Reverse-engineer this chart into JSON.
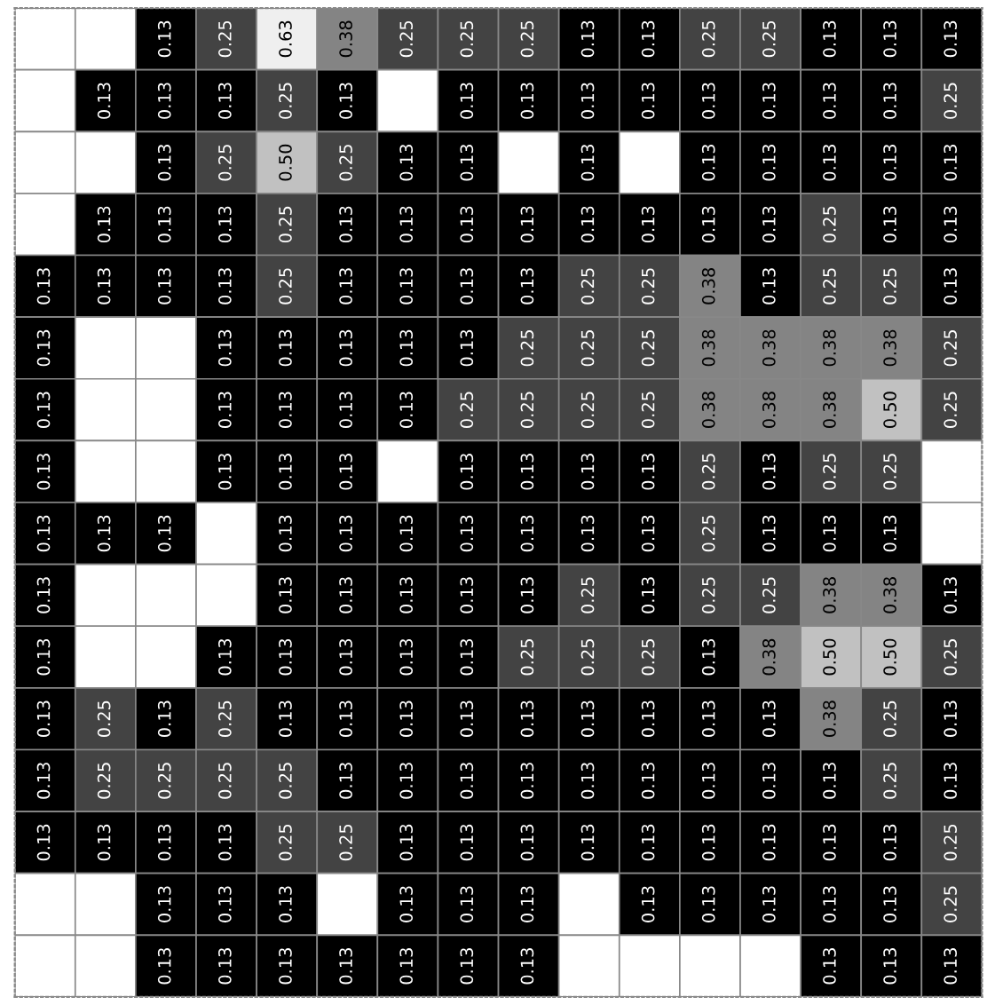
{
  "chart_data": {
    "type": "heatmap",
    "cell_labels": [
      [
        null,
        null,
        "0.13",
        "0.25",
        "0.63",
        "0.38",
        "0.25",
        "0.25",
        "0.25",
        "0.13",
        "0.13",
        "0.25",
        "0.25",
        "0.13",
        "0.13",
        "0.13"
      ],
      [
        null,
        "0.13",
        "0.13",
        "0.13",
        "0.25",
        "0.13",
        null,
        "0.13",
        "0.13",
        "0.13",
        "0.13",
        "0.13",
        "0.13",
        "0.13",
        "0.13",
        "0.25"
      ],
      [
        null,
        null,
        "0.13",
        "0.25",
        "0.50",
        "0.25",
        "0.13",
        "0.13",
        null,
        "0.13",
        null,
        "0.13",
        "0.13",
        "0.13",
        "0.13",
        "0.13"
      ],
      [
        null,
        "0.13",
        "0.13",
        "0.13",
        "0.25",
        "0.13",
        "0.13",
        "0.13",
        "0.13",
        "0.13",
        "0.13",
        "0.13",
        "0.13",
        "0.25",
        "0.13",
        "0.13"
      ],
      [
        "0.13",
        "0.13",
        "0.13",
        "0.13",
        "0.25",
        "0.13",
        "0.13",
        "0.13",
        "0.13",
        "0.25",
        "0.25",
        "0.38",
        "0.13",
        "0.25",
        "0.25",
        "0.13"
      ],
      [
        "0.13",
        null,
        null,
        "0.13",
        "0.13",
        "0.13",
        "0.13",
        "0.13",
        "0.25",
        "0.25",
        "0.25",
        "0.38",
        "0.38",
        "0.38",
        "0.38",
        "0.25"
      ],
      [
        "0.13",
        null,
        null,
        "0.13",
        "0.13",
        "0.13",
        "0.13",
        "0.25",
        "0.25",
        "0.25",
        "0.25",
        "0.38",
        "0.38",
        "0.38",
        "0.50",
        "0.25"
      ],
      [
        "0.13",
        null,
        null,
        "0.13",
        "0.13",
        "0.13",
        null,
        "0.13",
        "0.13",
        "0.13",
        "0.13",
        "0.25",
        "0.13",
        "0.25",
        "0.25",
        null
      ],
      [
        "0.13",
        "0.13",
        "0.13",
        null,
        "0.13",
        "0.13",
        "0.13",
        "0.13",
        "0.13",
        "0.13",
        "0.13",
        "0.25",
        "0.13",
        "0.13",
        "0.13",
        null
      ],
      [
        "0.13",
        null,
        null,
        null,
        "0.13",
        "0.13",
        "0.13",
        "0.13",
        "0.13",
        "0.25",
        "0.13",
        "0.25",
        "0.25",
        "0.38",
        "0.38",
        "0.13"
      ],
      [
        "0.13",
        null,
        null,
        "0.13",
        "0.13",
        "0.13",
        "0.13",
        "0.13",
        "0.25",
        "0.25",
        "0.25",
        "0.13",
        "0.38",
        "0.50",
        "0.50",
        "0.25"
      ],
      [
        "0.13",
        "0.25",
        "0.13",
        "0.25",
        "0.13",
        "0.13",
        "0.13",
        "0.13",
        "0.13",
        "0.13",
        "0.13",
        "0.13",
        "0.13",
        "0.38",
        "0.25",
        "0.13"
      ],
      [
        "0.13",
        "0.25",
        "0.25",
        "0.25",
        "0.25",
        "0.13",
        "0.13",
        "0.13",
        "0.13",
        "0.13",
        "0.13",
        "0.13",
        "0.13",
        "0.13",
        "0.25",
        "0.13"
      ],
      [
        "0.13",
        "0.13",
        "0.13",
        "0.13",
        "0.25",
        "0.25",
        "0.13",
        "0.13",
        "0.13",
        "0.13",
        "0.13",
        "0.13",
        "0.13",
        "0.13",
        "0.13",
        "0.25"
      ],
      [
        null,
        null,
        "0.13",
        "0.13",
        "0.13",
        null,
        "0.13",
        "0.13",
        "0.13",
        null,
        "0.13",
        "0.13",
        "0.13",
        "0.13",
        "0.13",
        "0.25"
      ],
      [
        null,
        null,
        "0.13",
        "0.13",
        "0.13",
        "0.13",
        "0.13",
        "0.13",
        "0.13",
        null,
        null,
        null,
        null,
        "0.13",
        "0.13",
        "0.13"
      ]
    ],
    "categories": [
      null,
      null,
      null,
      null,
      null,
      null,
      null,
      null,
      null,
      null,
      null,
      null,
      null,
      null,
      null,
      null
    ],
    "y_categories": [
      null,
      null,
      null,
      null,
      null,
      null,
      null,
      null,
      null,
      null,
      null,
      null,
      null,
      null,
      null,
      null
    ],
    "cells": [
      [
        null,
        null,
        0.13,
        0.25,
        0.63,
        0.38,
        0.25,
        0.25,
        0.25,
        0.13,
        0.13,
        0.25,
        0.25,
        0.13,
        0.13,
        0.13
      ],
      [
        null,
        0.13,
        0.13,
        0.13,
        0.25,
        0.13,
        null,
        0.13,
        0.13,
        0.13,
        0.13,
        0.13,
        0.13,
        0.13,
        0.13,
        0.25
      ],
      [
        null,
        null,
        0.13,
        0.25,
        0.5,
        0.25,
        0.13,
        0.13,
        null,
        0.13,
        null,
        0.13,
        0.13,
        0.13,
        0.13,
        0.13
      ],
      [
        null,
        0.13,
        0.13,
        0.13,
        0.25,
        0.13,
        0.13,
        0.13,
        0.13,
        0.13,
        0.13,
        0.13,
        0.13,
        0.25,
        0.13,
        0.13
      ],
      [
        0.13,
        0.13,
        0.13,
        0.13,
        0.25,
        0.13,
        0.13,
        0.13,
        0.13,
        0.25,
        0.25,
        0.38,
        0.13,
        0.25,
        0.25,
        0.13
      ],
      [
        0.13,
        null,
        null,
        0.13,
        0.13,
        0.13,
        0.13,
        0.13,
        0.25,
        0.25,
        0.25,
        0.38,
        0.38,
        0.38,
        0.38,
        0.25
      ],
      [
        0.13,
        null,
        null,
        0.13,
        0.13,
        0.13,
        0.13,
        0.25,
        0.25,
        0.25,
        0.25,
        0.38,
        0.38,
        0.38,
        0.5,
        0.25
      ],
      [
        0.13,
        null,
        null,
        0.13,
        0.13,
        0.13,
        null,
        0.13,
        0.13,
        0.13,
        0.13,
        0.25,
        0.13,
        0.25,
        0.25,
        null
      ],
      [
        0.13,
        0.13,
        0.13,
        null,
        0.13,
        0.13,
        0.13,
        0.13,
        0.13,
        0.13,
        0.13,
        0.25,
        0.13,
        0.13,
        0.13,
        null
      ],
      [
        0.13,
        null,
        null,
        null,
        0.13,
        0.13,
        0.13,
        0.13,
        0.13,
        0.25,
        0.13,
        0.25,
        0.25,
        0.38,
        0.38,
        0.13
      ],
      [
        0.13,
        null,
        null,
        0.13,
        0.13,
        0.13,
        0.13,
        0.13,
        0.25,
        0.25,
        0.25,
        0.13,
        0.38,
        0.5,
        0.5,
        0.25
      ],
      [
        0.13,
        0.25,
        0.13,
        0.25,
        0.13,
        0.13,
        0.13,
        0.13,
        0.13,
        0.13,
        0.13,
        0.13,
        0.13,
        0.38,
        0.25,
        0.13
      ],
      [
        0.13,
        0.25,
        0.25,
        0.25,
        0.25,
        0.13,
        0.13,
        0.13,
        0.13,
        0.13,
        0.13,
        0.13,
        0.13,
        0.13,
        0.25,
        0.13
      ],
      [
        0.13,
        0.13,
        0.13,
        0.13,
        0.25,
        0.25,
        0.13,
        0.13,
        0.13,
        0.13,
        0.13,
        0.13,
        0.13,
        0.13,
        0.13,
        0.25
      ],
      [
        null,
        null,
        0.13,
        0.13,
        0.13,
        null,
        0.13,
        0.13,
        0.13,
        null,
        0.13,
        0.13,
        0.13,
        0.13,
        0.13,
        0.25
      ],
      [
        null,
        null,
        0.13,
        0.13,
        0.13,
        0.13,
        0.13,
        0.13,
        0.13,
        null,
        null,
        null,
        null,
        0.13,
        0.13,
        0.13
      ]
    ]
  }
}
